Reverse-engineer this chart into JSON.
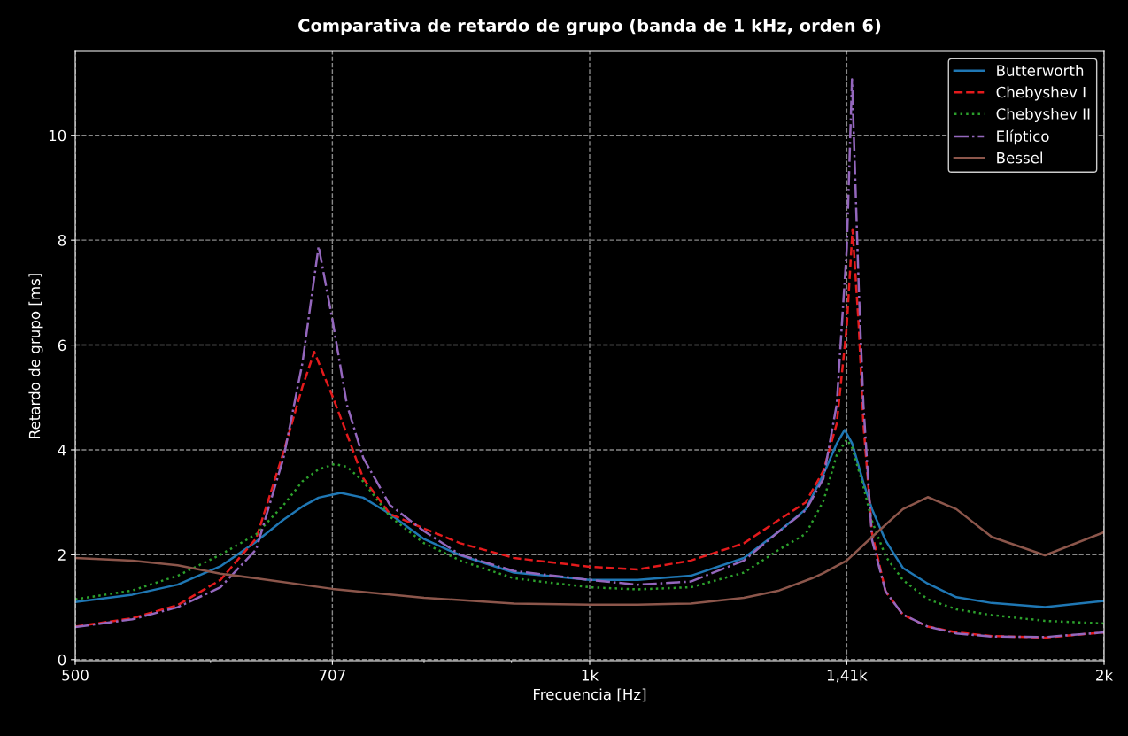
{
  "chart_data": {
    "type": "line",
    "title": "Comparativa de retardo de grupo (banda de 1 kHz, orden 6)",
    "xlabel": "Frecuencia [Hz]",
    "ylabel": "Retardo de grupo [ms]",
    "log": "x",
    "xlim": [
      500,
      2000
    ],
    "ylim": [
      -0.02,
      11.6
    ],
    "xticks": [
      500,
      {
        "value": 600,
        "label": null
      },
      {
        "value": 707,
        "label": "707"
      },
      {
        "value": 800,
        "label": null
      },
      {
        "value": 900,
        "label": null
      },
      {
        "value": 1000,
        "label": "1k"
      },
      {
        "value": 1414,
        "label": "1,41k"
      },
      {
        "value": 2000,
        "label": "2k"
      }
    ],
    "yticks": [
      0,
      2,
      4,
      6,
      8,
      10
    ],
    "grid": true,
    "legend": "top right",
    "series": [
      {
        "name": "Butterworth",
        "color": "#1f77b4",
        "line_style": "solid",
        "x": [
          500,
          540,
          574,
          608,
          638,
          662,
          679,
          694,
          715,
          737,
          764,
          800,
          840,
          903,
          1000,
          1067,
          1146,
          1231,
          1291,
          1338,
          1370,
          1395,
          1410,
          1424,
          1446,
          1463,
          1490,
          1525,
          1577,
          1639,
          1719,
          1847,
          2000
        ],
        "values": [
          1.1,
          1.24,
          1.43,
          1.78,
          2.25,
          2.67,
          2.92,
          3.09,
          3.18,
          3.09,
          2.78,
          2.3,
          1.99,
          1.66,
          1.52,
          1.52,
          1.6,
          1.94,
          2.45,
          2.87,
          3.53,
          4.12,
          4.38,
          4.13,
          3.38,
          2.87,
          2.27,
          1.75,
          1.45,
          1.19,
          1.08,
          1.0,
          1.12
        ]
      },
      {
        "name": "Chebyshev I",
        "color": "#e41a1c",
        "line_style": "dashed",
        "x": [
          500,
          540,
          574,
          608,
          638,
          662,
          679,
          690,
          707,
          721,
          737,
          764,
          800,
          840,
          903,
          1000,
          1067,
          1146,
          1231,
          1291,
          1338,
          1370,
          1395,
          1414,
          1425,
          1437,
          1446,
          1463,
          1490,
          1525,
          1577,
          1639,
          1719,
          1847,
          2000
        ],
        "values": [
          0.63,
          0.79,
          1.04,
          1.52,
          2.31,
          3.96,
          5.2,
          5.87,
          5.03,
          4.3,
          3.46,
          2.78,
          2.5,
          2.22,
          1.94,
          1.77,
          1.72,
          1.89,
          2.22,
          2.67,
          3.0,
          3.6,
          4.5,
          6.36,
          8.21,
          6.36,
          4.5,
          2.41,
          1.3,
          0.86,
          0.63,
          0.52,
          0.45,
          0.42,
          0.52
        ]
      },
      {
        "name": "Chebyshev II",
        "color": "#2ca02c",
        "line_style": "dotted",
        "x": [
          500,
          540,
          574,
          608,
          638,
          662,
          679,
          694,
          709,
          721,
          737,
          764,
          800,
          840,
          903,
          1000,
          1067,
          1146,
          1231,
          1291,
          1338,
          1370,
          1395,
          1414,
          1424,
          1446,
          1463,
          1490,
          1525,
          1577,
          1639,
          1719,
          1847,
          2000
        ],
        "values": [
          1.15,
          1.32,
          1.6,
          2.0,
          2.39,
          2.95,
          3.4,
          3.63,
          3.73,
          3.68,
          3.4,
          2.73,
          2.22,
          1.89,
          1.55,
          1.38,
          1.34,
          1.38,
          1.66,
          2.1,
          2.4,
          3.02,
          3.9,
          4.2,
          4.05,
          3.3,
          2.64,
          1.97,
          1.52,
          1.15,
          0.96,
          0.85,
          0.74,
          0.69
        ]
      },
      {
        "name": "Elíptico",
        "color": "#9467bd",
        "line_style": "dashdot",
        "x": [
          500,
          540,
          574,
          608,
          638,
          662,
          679,
          694,
          707,
          721,
          737,
          764,
          800,
          840,
          903,
          1000,
          1067,
          1146,
          1231,
          1291,
          1338,
          1370,
          1395,
          1414,
          1424,
          1437,
          1446,
          1463,
          1490,
          1525,
          1577,
          1639,
          1719,
          1847,
          2000
        ],
        "values": [
          0.62,
          0.77,
          1.0,
          1.38,
          2.1,
          3.85,
          5.65,
          7.88,
          6.49,
          4.86,
          3.85,
          2.95,
          2.45,
          2.0,
          1.69,
          1.52,
          1.43,
          1.49,
          1.89,
          2.45,
          2.85,
          3.45,
          4.87,
          7.84,
          11.07,
          7.1,
          4.87,
          2.28,
          1.3,
          0.86,
          0.63,
          0.5,
          0.44,
          0.43,
          0.52
        ]
      },
      {
        "name": "Bessel",
        "color": "#8c564b",
        "line_style": "solid",
        "x": [
          500,
          540,
          574,
          608,
          638,
          707,
          800,
          903,
          1000,
          1067,
          1146,
          1231,
          1291,
          1349,
          1370,
          1414,
          1463,
          1525,
          1577,
          1639,
          1719,
          1847,
          2000
        ],
        "values": [
          1.94,
          1.89,
          1.8,
          1.64,
          1.55,
          1.35,
          1.18,
          1.07,
          1.05,
          1.05,
          1.07,
          1.18,
          1.32,
          1.55,
          1.65,
          1.89,
          2.34,
          2.87,
          3.1,
          2.87,
          2.34,
          1.99,
          2.43
        ]
      }
    ]
  }
}
